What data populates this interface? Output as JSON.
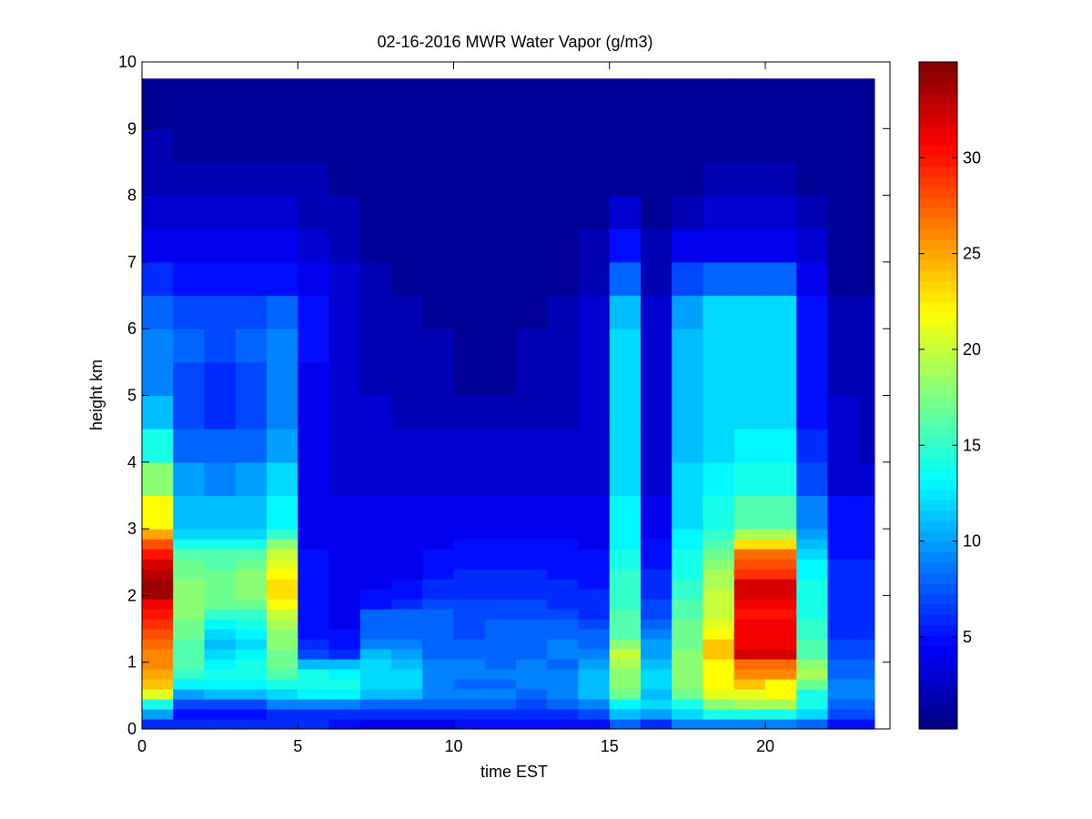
{
  "chart_data": {
    "type": "heatmap",
    "title": "02-16-2016 MWR Water Vapor (g/m3)",
    "xlabel": "time EST",
    "ylabel": "height km",
    "xlim": [
      0,
      24
    ],
    "ylim": [
      0,
      10
    ],
    "x_ticks": [
      0,
      5,
      10,
      15,
      20
    ],
    "y_ticks": [
      0,
      1,
      2,
      3,
      4,
      5,
      6,
      7,
      8,
      9,
      10
    ],
    "colorbar": {
      "colormap": "jet",
      "range": [
        0.2,
        35
      ],
      "ticks": [
        5,
        10,
        15,
        20,
        25,
        30
      ]
    },
    "time_bins_hours": [
      0,
      1,
      2,
      3,
      4,
      5,
      6,
      7,
      8,
      9,
      10,
      11,
      12,
      13,
      14,
      15,
      16,
      17,
      18,
      19,
      20,
      21,
      22,
      23
    ],
    "height_bins_km": [
      0,
      0.15,
      0.3,
      0.45,
      0.6,
      0.75,
      0.9,
      1.05,
      1.2,
      1.35,
      1.5,
      1.65,
      1.8,
      1.95,
      2.1,
      2.25,
      2.4,
      2.55,
      2.7,
      2.85,
      3.0,
      3.5,
      4.0,
      4.5,
      5.0,
      5.5,
      6.0,
      6.5,
      7.0,
      7.5,
      8.0,
      8.5,
      9.0,
      9.5
    ],
    "values_g_m3": [
      [
        6,
        6,
        6,
        6,
        6,
        6,
        5,
        4,
        4,
        4,
        5,
        5,
        5,
        5,
        5,
        8,
        6,
        9,
        9,
        9,
        9,
        8,
        5,
        5
      ],
      [
        10,
        5,
        5,
        5,
        6,
        6,
        6,
        6,
        6,
        6,
        6,
        6,
        6,
        6,
        7,
        11,
        10,
        12,
        14,
        14,
        14,
        12,
        7,
        7
      ],
      [
        14,
        7,
        7,
        7,
        9,
        9,
        9,
        8,
        8,
        8,
        8,
        8,
        7,
        8,
        9,
        13,
        12,
        14,
        18,
        19,
        19,
        14,
        8,
        8
      ],
      [
        21,
        10,
        11,
        11,
        12,
        13,
        13,
        11,
        11,
        9,
        9,
        9,
        8,
        9,
        11,
        17,
        11,
        17,
        21,
        21,
        22,
        14,
        9,
        9
      ],
      [
        24,
        13,
        13,
        13,
        14,
        14,
        14,
        12,
        12,
        9,
        8,
        8,
        9,
        9,
        11,
        18,
        12,
        18,
        22,
        24,
        22,
        17,
        9,
        9
      ],
      [
        25,
        15,
        14,
        14,
        16,
        14,
        13,
        12,
        12,
        9,
        9,
        9,
        9,
        9,
        11,
        18,
        12,
        18,
        22,
        26,
        26,
        19,
        8,
        8
      ],
      [
        26,
        16,
        13,
        14,
        17,
        11,
        11,
        12,
        11,
        9,
        9,
        8,
        9,
        8,
        10,
        19,
        11,
        18,
        22,
        27,
        27,
        18,
        8,
        8
      ],
      [
        26,
        16,
        12,
        13,
        17,
        7,
        6,
        11,
        10,
        8,
        8,
        8,
        8,
        9,
        9,
        20,
        10,
        18,
        24,
        32,
        32,
        16,
        7,
        7
      ],
      [
        27,
        16,
        11,
        12,
        18,
        6,
        5,
        9,
        9,
        8,
        8,
        8,
        8,
        9,
        8,
        18,
        10,
        17,
        24,
        31,
        31,
        16,
        7,
        7
      ],
      [
        28,
        17,
        12,
        13,
        18,
        5,
        5,
        8,
        8,
        8,
        7,
        8,
        8,
        8,
        8,
        16,
        9,
        17,
        22,
        31,
        31,
        15,
        6,
        6
      ],
      [
        29,
        17,
        13,
        14,
        19,
        5,
        4,
        8,
        8,
        8,
        7,
        8,
        8,
        8,
        7,
        16,
        8,
        17,
        21,
        31,
        31,
        15,
        6,
        6
      ],
      [
        30,
        18,
        15,
        15,
        20,
        5,
        4,
        8,
        8,
        8,
        7,
        7,
        7,
        7,
        6,
        16,
        7,
        16,
        20,
        30,
        30,
        14,
        6,
        6
      ],
      [
        31,
        18,
        17,
        17,
        22,
        5,
        4,
        5,
        6,
        7,
        7,
        7,
        7,
        6,
        6,
        15,
        7,
        16,
        20,
        31,
        31,
        14,
        6,
        6
      ],
      [
        34,
        18,
        17,
        18,
        23,
        5,
        4,
        5,
        5,
        6,
        6,
        6,
        6,
        6,
        6,
        15,
        6,
        15,
        20,
        32,
        32,
        14,
        6,
        6
      ],
      [
        34,
        18,
        17,
        18,
        23,
        5,
        4,
        4,
        5,
        6,
        6,
        6,
        6,
        6,
        5,
        15,
        6,
        15,
        19,
        32,
        32,
        14,
        6,
        6
      ],
      [
        33,
        17,
        17,
        18,
        22,
        5,
        4,
        4,
        4,
        5,
        6,
        6,
        6,
        5,
        5,
        15,
        6,
        14,
        19,
        29,
        29,
        13,
        6,
        6
      ],
      [
        32,
        17,
        16,
        17,
        21,
        5,
        4,
        4,
        4,
        5,
        5,
        5,
        5,
        5,
        5,
        14,
        5,
        14,
        18,
        28,
        28,
        13,
        6,
        6
      ],
      [
        30,
        16,
        16,
        16,
        20,
        5,
        4,
        4,
        4,
        5,
        5,
        5,
        5,
        5,
        5,
        14,
        5,
        14,
        17,
        27,
        27,
        12,
        5,
        5
      ],
      [
        28,
        14,
        14,
        14,
        18,
        4,
        4,
        4,
        4,
        4,
        5,
        5,
        5,
        5,
        4,
        13,
        5,
        13,
        16,
        23,
        23,
        11,
        5,
        5
      ],
      [
        25,
        12,
        12,
        12,
        15,
        4,
        4,
        4,
        4,
        4,
        4,
        4,
        4,
        4,
        4,
        13,
        4,
        13,
        15,
        19,
        19,
        10,
        5,
        5
      ],
      [
        22,
        11,
        11,
        11,
        13,
        4,
        4,
        4,
        4,
        4,
        4,
        4,
        4,
        4,
        4,
        13,
        4,
        12,
        14,
        16,
        16,
        9,
        5,
        5
      ],
      [
        18,
        10,
        9,
        10,
        12,
        4,
        3,
        3,
        3,
        3,
        3,
        3,
        3,
        3,
        3,
        12,
        3,
        12,
        13,
        14,
        14,
        7,
        3,
        3
      ],
      [
        14,
        8,
        8,
        8,
        10,
        4,
        3,
        3,
        3,
        3,
        3,
        3,
        3,
        3,
        3,
        12,
        3,
        11,
        12,
        13,
        13,
        6,
        3,
        2
      ],
      [
        11,
        7,
        6,
        7,
        9,
        4,
        3,
        3,
        2,
        2,
        2,
        2,
        2,
        2,
        3,
        12,
        3,
        11,
        12,
        12,
        12,
        5,
        3,
        2
      ],
      [
        9,
        7,
        6,
        7,
        9,
        4,
        3,
        2,
        2,
        2,
        1,
        1,
        2,
        2,
        3,
        12,
        3,
        11,
        12,
        12,
        12,
        5,
        2,
        2
      ],
      [
        9,
        8,
        7,
        8,
        9,
        5,
        3,
        2,
        2,
        2,
        1,
        1,
        2,
        2,
        3,
        12,
        3,
        11,
        12,
        12,
        12,
        5,
        2,
        2
      ],
      [
        8,
        7,
        7,
        7,
        8,
        5,
        3,
        2,
        2,
        1,
        1,
        1,
        1,
        2,
        3,
        11,
        3,
        10,
        12,
        12,
        12,
        5,
        2,
        2
      ],
      [
        6,
        5,
        5,
        5,
        5,
        4,
        3,
        2,
        1,
        1,
        1,
        1,
        1,
        1,
        2,
        8,
        2,
        7,
        8,
        8,
        8,
        4,
        1,
        1
      ],
      [
        4,
        4,
        4,
        4,
        4,
        3,
        2,
        1,
        1,
        1,
        1,
        1,
        1,
        1,
        2,
        5,
        2,
        4,
        4,
        4,
        4,
        3,
        1,
        1
      ],
      [
        3,
        3,
        3,
        3,
        3,
        2,
        2,
        1,
        1,
        1,
        1,
        1,
        1,
        1,
        1,
        3,
        1,
        2,
        3,
        3,
        3,
        2,
        1,
        1
      ],
      [
        2,
        2,
        2,
        2,
        2,
        2,
        1,
        1,
        1,
        1,
        1,
        1,
        1,
        1,
        1,
        1,
        1,
        1,
        2,
        2,
        2,
        1,
        1,
        1
      ],
      [
        2,
        1,
        1,
        1,
        1,
        1,
        1,
        1,
        1,
        1,
        1,
        1,
        1,
        1,
        1,
        1,
        1,
        1,
        1,
        1,
        1,
        1,
        1,
        1
      ],
      [
        1,
        1,
        1,
        1,
        1,
        1,
        1,
        1,
        1,
        1,
        1,
        1,
        1,
        1,
        1,
        1,
        1,
        1,
        1,
        1,
        1,
        1,
        1,
        1
      ],
      [
        1,
        1,
        1,
        1,
        1,
        1,
        1,
        1,
        1,
        1,
        1,
        1,
        1,
        1,
        1,
        1,
        1,
        1,
        1,
        1,
        1,
        1,
        1,
        1
      ]
    ]
  }
}
